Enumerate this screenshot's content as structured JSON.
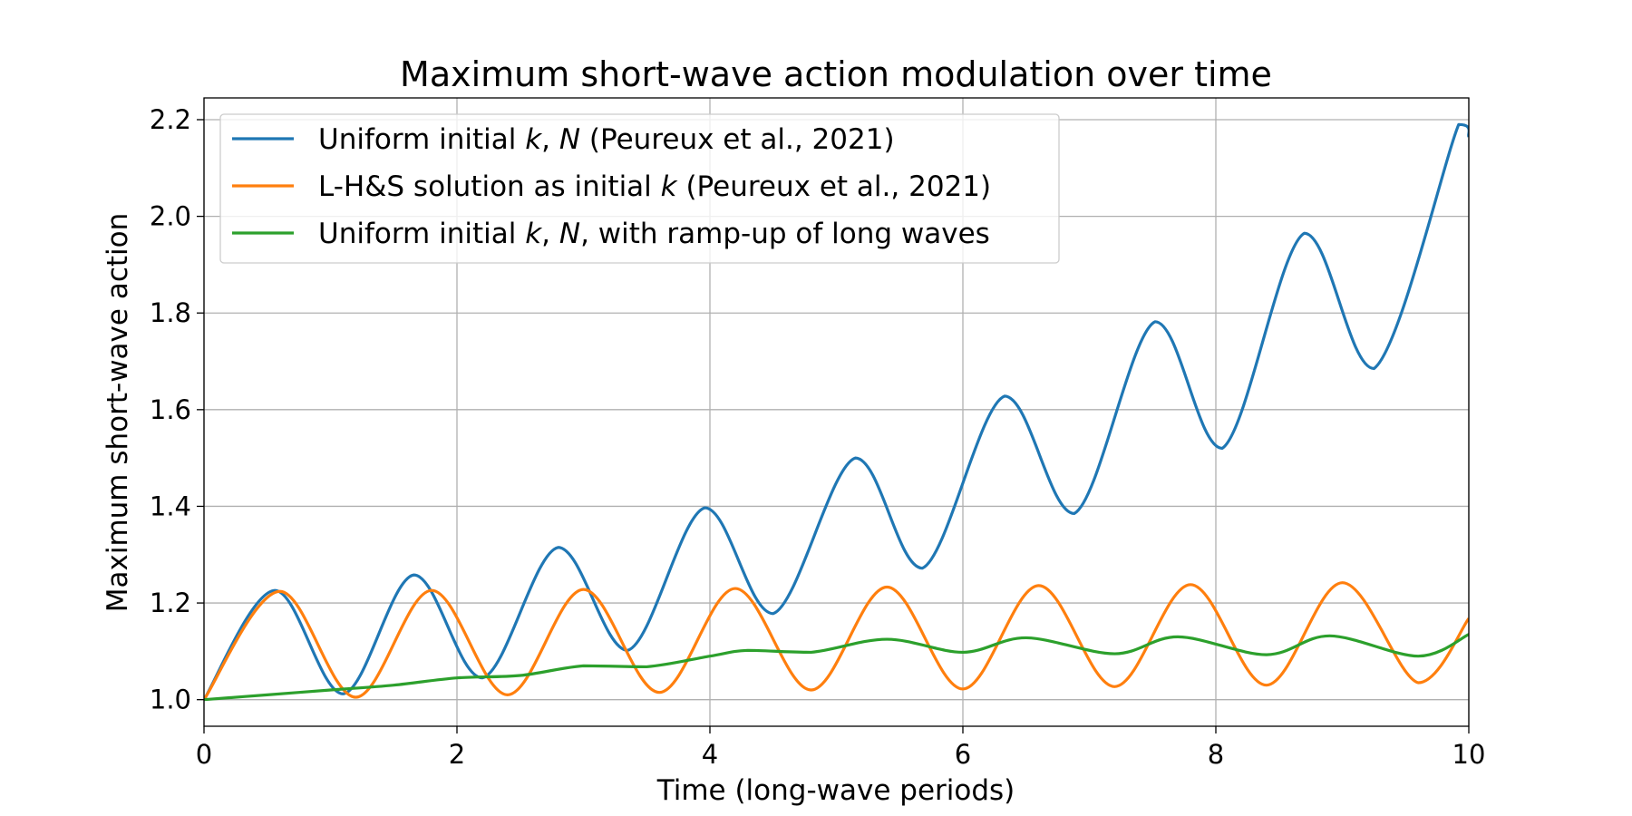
{
  "chart_data": {
    "type": "line",
    "title": "Maximum short-wave action modulation over time",
    "xlabel": "Time (long-wave periods)",
    "ylabel": "Maximum short-wave action",
    "xlim": [
      0,
      10
    ],
    "ylim": [
      0.945,
      2.245
    ],
    "xticks": [
      0,
      2,
      4,
      6,
      8,
      10
    ],
    "yticks": [
      1.0,
      1.2,
      1.4,
      1.6,
      1.8,
      2.0,
      2.2
    ],
    "grid": true,
    "legend_position": "upper-left",
    "series": [
      {
        "name": "Uniform initial k, N (Peureux et al., 2021)",
        "legend": [
          {
            "text": "Uniform initial ",
            "italic": false
          },
          {
            "text": "k",
            "italic": true
          },
          {
            "text": ", ",
            "italic": false
          },
          {
            "text": "N",
            "italic": true
          },
          {
            "text": " (Peureux et al., 2021)",
            "italic": false
          }
        ],
        "color": "#1f77b4",
        "x": [
          0,
          0.56,
          1.1,
          1.66,
          2.2,
          2.8,
          3.35,
          3.96,
          4.5,
          5.15,
          5.68,
          6.33,
          6.88,
          7.52,
          8.05,
          8.7,
          9.25,
          9.92,
          10.0
        ],
        "y": [
          1.0,
          1.226,
          1.012,
          1.258,
          1.045,
          1.315,
          1.102,
          1.397,
          1.178,
          1.5,
          1.272,
          1.628,
          1.385,
          1.782,
          1.52,
          1.965,
          1.685,
          2.19,
          2.165
        ]
      },
      {
        "name": "L-H&S solution as initial k (Peureux et al., 2021)",
        "legend": [
          {
            "text": "L-H&S solution as initial ",
            "italic": false
          },
          {
            "text": "k",
            "italic": true
          },
          {
            "text": " (Peureux et al., 2021)",
            "italic": false
          }
        ],
        "color": "#ff7f0e",
        "x": [
          0,
          0.6,
          1.2,
          1.8,
          2.4,
          3.0,
          3.6,
          4.2,
          4.8,
          5.4,
          6.0,
          6.6,
          7.2,
          7.8,
          8.4,
          9.0,
          9.6,
          10.0
        ],
        "y": [
          1.0,
          1.224,
          1.005,
          1.226,
          1.01,
          1.228,
          1.015,
          1.23,
          1.02,
          1.233,
          1.022,
          1.236,
          1.027,
          1.238,
          1.03,
          1.242,
          1.035,
          1.168
        ]
      },
      {
        "name": "Uniform initial k, N, with ramp-up of long waves",
        "legend": [
          {
            "text": "Uniform initial ",
            "italic": false
          },
          {
            "text": "k",
            "italic": true
          },
          {
            "text": ", ",
            "italic": false
          },
          {
            "text": "N",
            "italic": true
          },
          {
            "text": ", with ramp-up of long waves",
            "italic": false
          }
        ],
        "color": "#2ca02c",
        "x": [
          0,
          0.5,
          1.0,
          1.5,
          2.0,
          2.5,
          3.0,
          3.5,
          4.0,
          4.3,
          4.8,
          5.4,
          6.0,
          6.5,
          7.2,
          7.7,
          8.4,
          8.9,
          9.6,
          10.0
        ],
        "y": [
          1.0,
          1.01,
          1.02,
          1.03,
          1.045,
          1.05,
          1.07,
          1.068,
          1.09,
          1.102,
          1.098,
          1.125,
          1.098,
          1.128,
          1.095,
          1.13,
          1.093,
          1.132,
          1.09,
          1.135
        ]
      }
    ]
  }
}
